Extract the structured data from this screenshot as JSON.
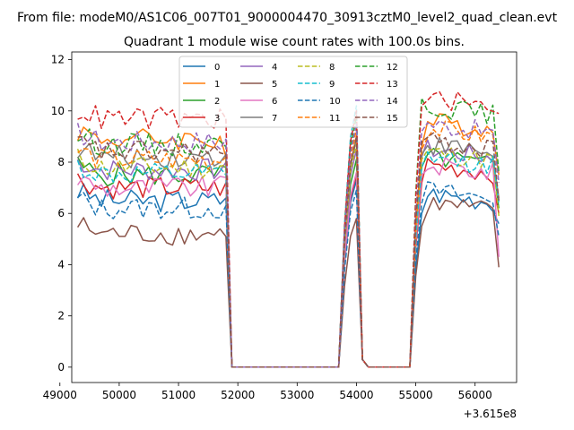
{
  "chart_data": {
    "type": "line",
    "suptitle": "From file: modeM0/AS1C06_007T01_9000004470_30913cztM0_level2_quad_clean.evt",
    "title": "Quadrant 1 module wise count rates with 100.0s bins.",
    "xlabel": "",
    "ylabel": "",
    "x_offset_label": "+3.615e8",
    "xlim": [
      49200,
      56700
    ],
    "ylim": [
      -0.6,
      12.3
    ],
    "x_ticks": [
      49000,
      50000,
      51000,
      52000,
      53000,
      54000,
      55000,
      56000
    ],
    "y_ticks": [
      0,
      2,
      4,
      6,
      8,
      10,
      12
    ],
    "x_tick_labels": [
      "49000",
      "50000",
      "51000",
      "52000",
      "53000",
      "54000",
      "55000",
      "56000"
    ],
    "y_tick_labels": [
      "0",
      "2",
      "4",
      "6",
      "8",
      "10",
      "12"
    ],
    "legend_position": "upper center",
    "legend_columns": 4,
    "segments": [
      {
        "x_start": 49300,
        "x_end": 51800
      },
      {
        "x_start": 51900,
        "x_end": 53700
      },
      {
        "x_start": 53800,
        "x_end": 54100
      },
      {
        "x_start": 54200,
        "x_end": 54900
      },
      {
        "x_start": 55000,
        "x_end": 56400
      }
    ],
    "series": [
      {
        "name": "0",
        "color": "#1f77b4",
        "dashed": false,
        "seg1_level": 6.5,
        "seg1_last": 6.6,
        "peak": 7.3,
        "seg5_start": 6.0,
        "seg5_level": 6.8,
        "seg5_end": 5.6
      },
      {
        "name": "1",
        "color": "#ff7f0e",
        "dashed": false,
        "seg1_level": 8.9,
        "seg1_last": 8.2,
        "peak": 9.0,
        "seg5_start": 8.6,
        "seg5_level": 9.6,
        "seg5_end": 7.5
      },
      {
        "name": "2",
        "color": "#2ca02c",
        "dashed": false,
        "seg1_level": 7.5,
        "seg1_last": 7.8,
        "peak": 8.1,
        "seg5_start": 7.8,
        "seg5_level": 8.2,
        "seg5_end": 6.2
      },
      {
        "name": "3",
        "color": "#d62728",
        "dashed": false,
        "seg1_level": 7.0,
        "seg1_last": 7.2,
        "peak": 7.5,
        "seg5_start": 7.2,
        "seg5_level": 7.9,
        "seg5_end": 6.0
      },
      {
        "name": "4",
        "color": "#9467bd",
        "dashed": false,
        "seg1_level": 7.7,
        "seg1_last": 8.0,
        "peak": 8.5,
        "seg5_start": 8.2,
        "seg5_level": 8.5,
        "seg5_end": 6.5
      },
      {
        "name": "5",
        "color": "#8c564b",
        "dashed": false,
        "seg1_level": 5.2,
        "seg1_last": 5.1,
        "peak": 5.8,
        "seg5_start": 5.5,
        "seg5_level": 6.4,
        "seg5_end": 3.9
      },
      {
        "name": "6",
        "color": "#e377c2",
        "dashed": false,
        "seg1_level": 7.0,
        "seg1_last": 7.4,
        "peak": 7.6,
        "seg5_start": 7.5,
        "seg5_level": 7.9,
        "seg5_end": 4.3
      },
      {
        "name": "7",
        "color": "#7f7f7f",
        "dashed": false,
        "seg1_level": 8.2,
        "seg1_last": 8.3,
        "peak": 8.9,
        "seg5_start": 8.3,
        "seg5_level": 8.7,
        "seg5_end": 6.6
      },
      {
        "name": "8",
        "color": "#bcbd22",
        "dashed": true,
        "seg1_level": 7.8,
        "seg1_last": 7.9,
        "peak": 8.7,
        "seg5_start": 8.1,
        "seg5_level": 8.4,
        "seg5_end": 5.9
      },
      {
        "name": "9",
        "color": "#17becf",
        "dashed": true,
        "seg1_level": 7.5,
        "seg1_last": 7.5,
        "peak": 10.2,
        "seg5_start": 7.8,
        "seg5_level": 8.2,
        "seg5_end": 6.4
      },
      {
        "name": "10",
        "color": "#1f77b4",
        "dashed": true,
        "seg1_level": 6.2,
        "seg1_last": 6.3,
        "peak": 6.9,
        "seg5_start": 6.4,
        "seg5_level": 6.9,
        "seg5_end": 5.1
      },
      {
        "name": "11",
        "color": "#ff7f0e",
        "dashed": true,
        "seg1_level": 8.1,
        "seg1_last": 8.2,
        "peak": 9.3,
        "seg5_start": 8.5,
        "seg5_level": 9.3,
        "seg5_end": 7.5
      },
      {
        "name": "12",
        "color": "#2ca02c",
        "dashed": true,
        "seg1_level": 8.7,
        "seg1_last": 8.6,
        "peak": 9.8,
        "seg5_start": 10.5,
        "seg5_level": 10.2,
        "seg5_end": 7.6
      },
      {
        "name": "13",
        "color": "#d62728",
        "dashed": true,
        "seg1_level": 9.7,
        "seg1_last": 9.7,
        "peak": 10.0,
        "seg5_start": 10.2,
        "seg5_level": 10.5,
        "seg5_end": 9.9
      },
      {
        "name": "14",
        "color": "#9467bd",
        "dashed": true,
        "seg1_level": 8.8,
        "seg1_last": 8.9,
        "peak": 9.5,
        "seg5_start": 9.2,
        "seg5_level": 9.5,
        "seg5_end": 7.2
      },
      {
        "name": "15",
        "color": "#8c564b",
        "dashed": true,
        "seg1_level": 8.4,
        "seg1_last": 8.3,
        "peak": 9.0,
        "seg5_start": 8.8,
        "seg5_level": 8.8,
        "seg5_end": 6.5
      }
    ]
  }
}
